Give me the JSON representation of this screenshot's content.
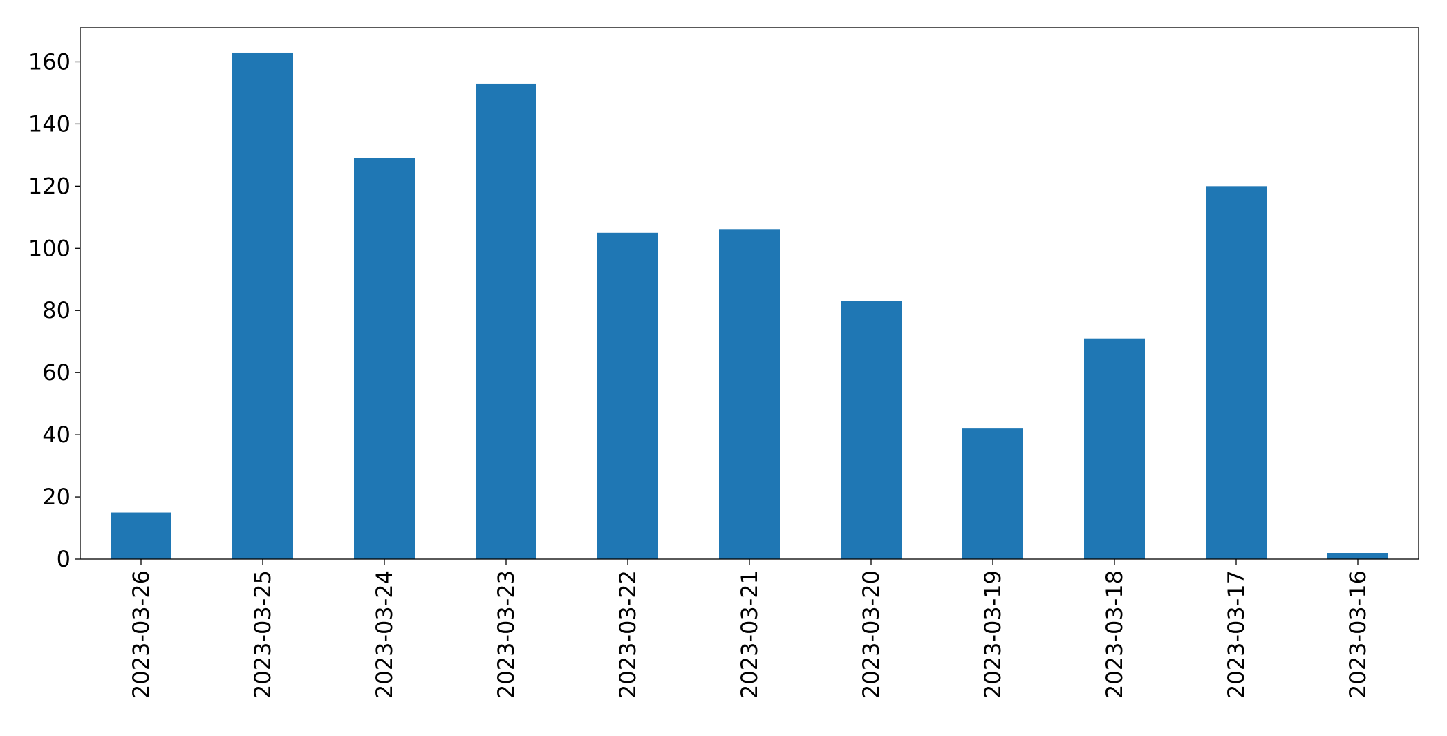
{
  "chart_data": {
    "type": "bar",
    "categories": [
      "2023-03-26",
      "2023-03-25",
      "2023-03-24",
      "2023-03-23",
      "2023-03-22",
      "2023-03-21",
      "2023-03-20",
      "2023-03-19",
      "2023-03-18",
      "2023-03-17",
      "2023-03-16"
    ],
    "values": [
      15,
      163,
      129,
      153,
      105,
      106,
      83,
      42,
      71,
      120,
      2
    ],
    "color": "#1f77b4",
    "ylim": [
      0,
      171
    ],
    "yticks": [
      0,
      20,
      40,
      60,
      80,
      100,
      120,
      140,
      160
    ],
    "grid": false
  }
}
